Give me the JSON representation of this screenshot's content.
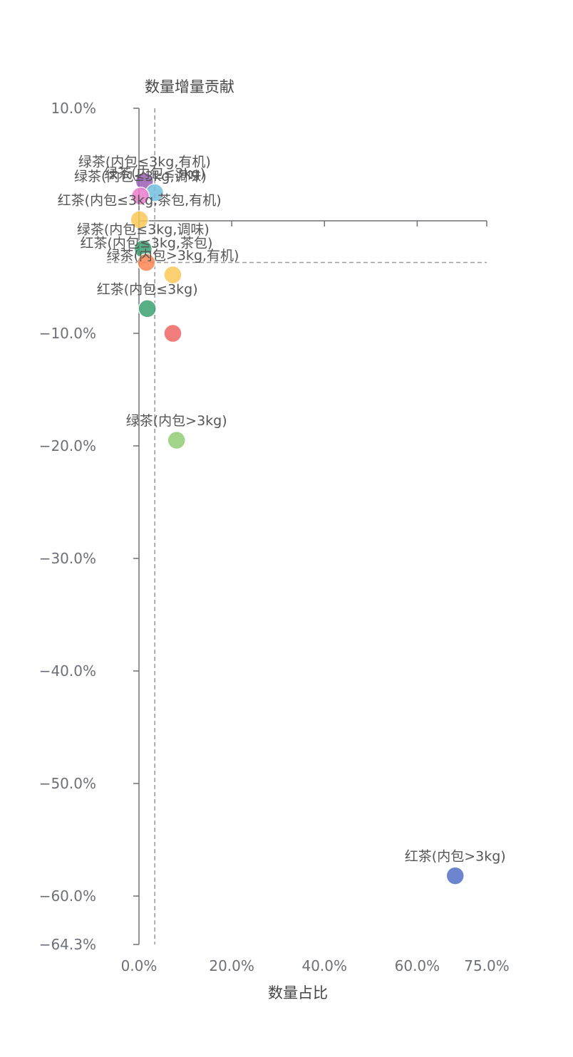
{
  "chart_data": {
    "type": "scatter",
    "title": "",
    "xlabel": "数量占比",
    "ylabel": "数量增量贡献",
    "xlim": [
      0,
      75
    ],
    "ylim": [
      -64.3,
      10
    ],
    "x_ticks": [
      {
        "value": 0,
        "label": "0.0%"
      },
      {
        "value": 20,
        "label": "20.0%"
      },
      {
        "value": 40,
        "label": "40.0%"
      },
      {
        "value": 60,
        "label": "60.0%"
      },
      {
        "value": 75,
        "label": "75.0%"
      }
    ],
    "y_ticks": [
      {
        "value": 10,
        "label": "10.0%"
      },
      {
        "value": -10,
        "label": "−10.0%"
      },
      {
        "value": -20,
        "label": "−20.0%"
      },
      {
        "value": -30,
        "label": "−30.0%"
      },
      {
        "value": -40,
        "label": "−40.0%"
      },
      {
        "value": -50,
        "label": "−50.0%"
      },
      {
        "value": -60,
        "label": "−60.0%"
      },
      {
        "value": -64.3,
        "label": "−64.3%"
      }
    ],
    "x_axis_crosses_y": 0,
    "y_axis_crosses_x": 0,
    "reference_lines": {
      "x": 3.4,
      "y": -3.7
    },
    "grid": false,
    "points": [
      {
        "label": "绿茶(内包≤3kg,有机)",
        "x": 1.2,
        "y": 3.5,
        "color": "#9a60b4"
      },
      {
        "label": "绿茶(内包≤3kg)",
        "x": 3.4,
        "y": 2.5,
        "color": "#73c0de"
      },
      {
        "label": "绿茶(内包≤3kg,调味)",
        "x": 0.3,
        "y": 2.2,
        "color": "#ea7ccc"
      },
      {
        "label": "红茶(内包≤3kg,茶包,有机)",
        "x": 0.1,
        "y": 0.1,
        "color": "#fac858"
      },
      {
        "label": "绿茶(内包≤3kg,调味)",
        "x": 0.9,
        "y": -2.5,
        "color": "#3ba272"
      },
      {
        "label": "红茶(内包≤3kg,茶包)",
        "x": 1.6,
        "y": -3.7,
        "color": "#fc8452"
      },
      {
        "label": "绿茶(内包>3kg,有机)",
        "x": 7.3,
        "y": -4.8,
        "color": "#fac858"
      },
      {
        "label": "红茶(内包≤3kg)",
        "x": 1.8,
        "y": -7.8,
        "color": "#3ba272"
      },
      {
        "label": "",
        "x": 7.3,
        "y": -10.0,
        "color": "#ee6666"
      },
      {
        "label": "绿茶(内包>3kg)",
        "x": 8.1,
        "y": -19.5,
        "color": "#91cc75"
      },
      {
        "label": "红茶(内包>3kg)",
        "x": 68.2,
        "y": -58.2,
        "color": "#5470c6"
      }
    ]
  }
}
